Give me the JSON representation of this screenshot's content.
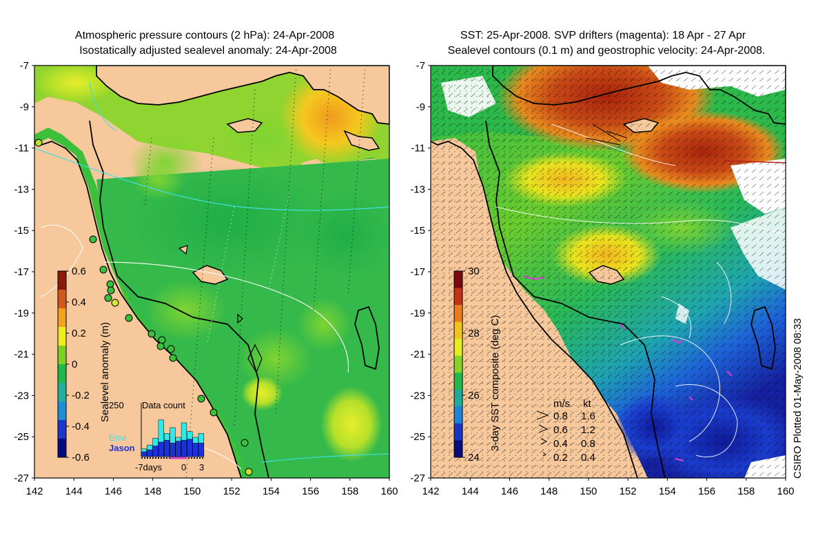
{
  "left_panel": {
    "title_line1": "Atmospheric pressure contours (2 hPa): 24-Apr-2008",
    "title_line2": "Isostatically adjusted sealevel anomaly: 24-Apr-2008",
    "colorbar": {
      "label": "Sealevel anomaly (m)",
      "ticks": [
        "0.6",
        "0.4",
        "0.2",
        "0",
        "-0.2",
        "-0.4",
        "-0.6"
      ],
      "colors": [
        "#8b1a0a",
        "#d4581a",
        "#f2a21f",
        "#ecec1e",
        "#7cd224",
        "#1fb84a",
        "#21b09a",
        "#1f8fd8",
        "#1b36c8",
        "#0a0a80"
      ]
    },
    "data_count": {
      "title": "Data count",
      "max_label": "250",
      "legend_envi": "Envi",
      "legend_jason": "Jason",
      "x_labels": [
        "-7days",
        "0",
        "3"
      ],
      "envi_counts": [
        40,
        60,
        95,
        190,
        120,
        150,
        100,
        175,
        130,
        100,
        120
      ],
      "jason_counts": [
        25,
        35,
        55,
        75,
        85,
        70,
        80,
        85,
        90,
        70,
        70
      ]
    }
  },
  "right_panel": {
    "title_line1": "SST: 25-Apr-2008. SVP drifters (magenta): 18 Apr - 27 Apr",
    "title_line2": "Sealevel contours (0.1 m) and geostrophic velocity: 24-Apr-2008.",
    "colorbar": {
      "label": "3-day SST composite (deg C)",
      "ticks": [
        "30",
        "28",
        "26",
        "24"
      ],
      "colors": [
        "#7a0c0c",
        "#c43214",
        "#ec7a1e",
        "#f2c21e",
        "#e6ee1e",
        "#86d42a",
        "#23b84a",
        "#1faa9c",
        "#1e82d8",
        "#1a34c4",
        "#0a0a7a"
      ]
    },
    "velocity_legend": {
      "header_ms": "m/s",
      "header_kt": "kt",
      "rows": [
        {
          "ms": "0.8",
          "kt": "1.6"
        },
        {
          "ms": "0.6",
          "kt": "1.2"
        },
        {
          "ms": "0.4",
          "kt": "0.8"
        },
        {
          "ms": "0.2",
          "kt": "0.4"
        }
      ]
    }
  },
  "axes": {
    "lat_ticks": [
      "-7",
      "-9",
      "-11",
      "-13",
      "-15",
      "-17",
      "-19",
      "-21",
      "-23",
      "-25",
      "-27"
    ],
    "lon_ticks": [
      "142",
      "144",
      "146",
      "148",
      "150",
      "152",
      "154",
      "156",
      "158",
      "160"
    ],
    "lat_range": [
      -27,
      -7
    ],
    "lon_range": [
      142,
      160
    ]
  },
  "credit": "CSIRO Plotted 01-May-2008 08:33",
  "colors": {
    "land": "#f7c89b",
    "coast": "#000000",
    "contour_cyan": "#40e0e0",
    "drifter_magenta": "#d040d0"
  }
}
